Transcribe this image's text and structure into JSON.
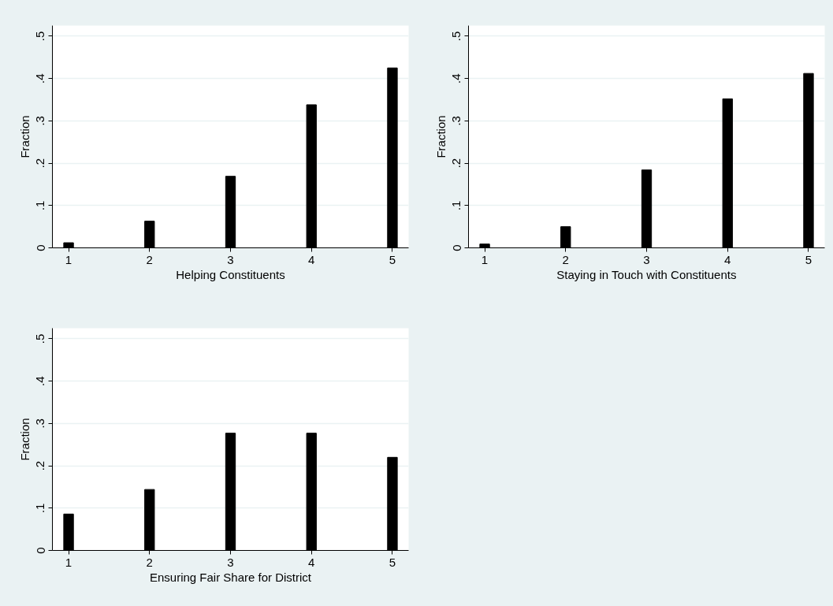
{
  "chart_data": [
    {
      "type": "bar",
      "x": [
        1,
        2,
        3,
        4,
        5
      ],
      "values": [
        0.012,
        0.063,
        0.169,
        0.338,
        0.425
      ],
      "color": "#000000",
      "xlabel": "Helping Constituents",
      "ylabel": "Fraction",
      "xlim": [
        0.8,
        5.2
      ],
      "ylim": [
        0,
        0.525
      ],
      "xticks": [
        1,
        2,
        3,
        4,
        5
      ],
      "yticks": [
        0,
        {
          "value": 0.1,
          "label": ".1"
        },
        {
          "value": 0.2,
          "label": ".2"
        },
        {
          "value": 0.3,
          "label": ".3"
        },
        {
          "value": 0.4,
          "label": ".4"
        },
        {
          "value": 0.5,
          "label": ".5"
        }
      ],
      "grid": "y"
    },
    {
      "type": "bar",
      "x": [
        1,
        2,
        3,
        4,
        5
      ],
      "values": [
        0.009,
        0.05,
        0.184,
        0.352,
        0.412
      ],
      "color": "#000000",
      "xlabel": "Staying in Touch with Constituents",
      "ylabel": "Fraction",
      "xlim": [
        0.8,
        5.2
      ],
      "ylim": [
        0,
        0.525
      ],
      "xticks": [
        1,
        2,
        3,
        4,
        5
      ],
      "yticks": [
        0,
        {
          "value": 0.1,
          "label": ".1"
        },
        {
          "value": 0.2,
          "label": ".2"
        },
        {
          "value": 0.3,
          "label": ".3"
        },
        {
          "value": 0.4,
          "label": ".4"
        },
        {
          "value": 0.5,
          "label": ".5"
        }
      ],
      "grid": "y"
    },
    {
      "type": "bar",
      "x": [
        1,
        2,
        3,
        4,
        5
      ],
      "values": [
        0.086,
        0.144,
        0.277,
        0.277,
        0.22
      ],
      "color": "#000000",
      "xlabel": "Ensuring Fair Share for District",
      "ylabel": "Fraction",
      "xlim": [
        0.8,
        5.2
      ],
      "ylim": [
        0,
        0.525
      ],
      "xticks": [
        1,
        2,
        3,
        4,
        5
      ],
      "yticks": [
        0,
        {
          "value": 0.1,
          "label": ".1"
        },
        {
          "value": 0.2,
          "label": ".2"
        },
        {
          "value": 0.3,
          "label": ".3"
        },
        {
          "value": 0.4,
          "label": ".4"
        },
        {
          "value": 0.5,
          "label": ".5"
        }
      ],
      "grid": "y"
    }
  ]
}
